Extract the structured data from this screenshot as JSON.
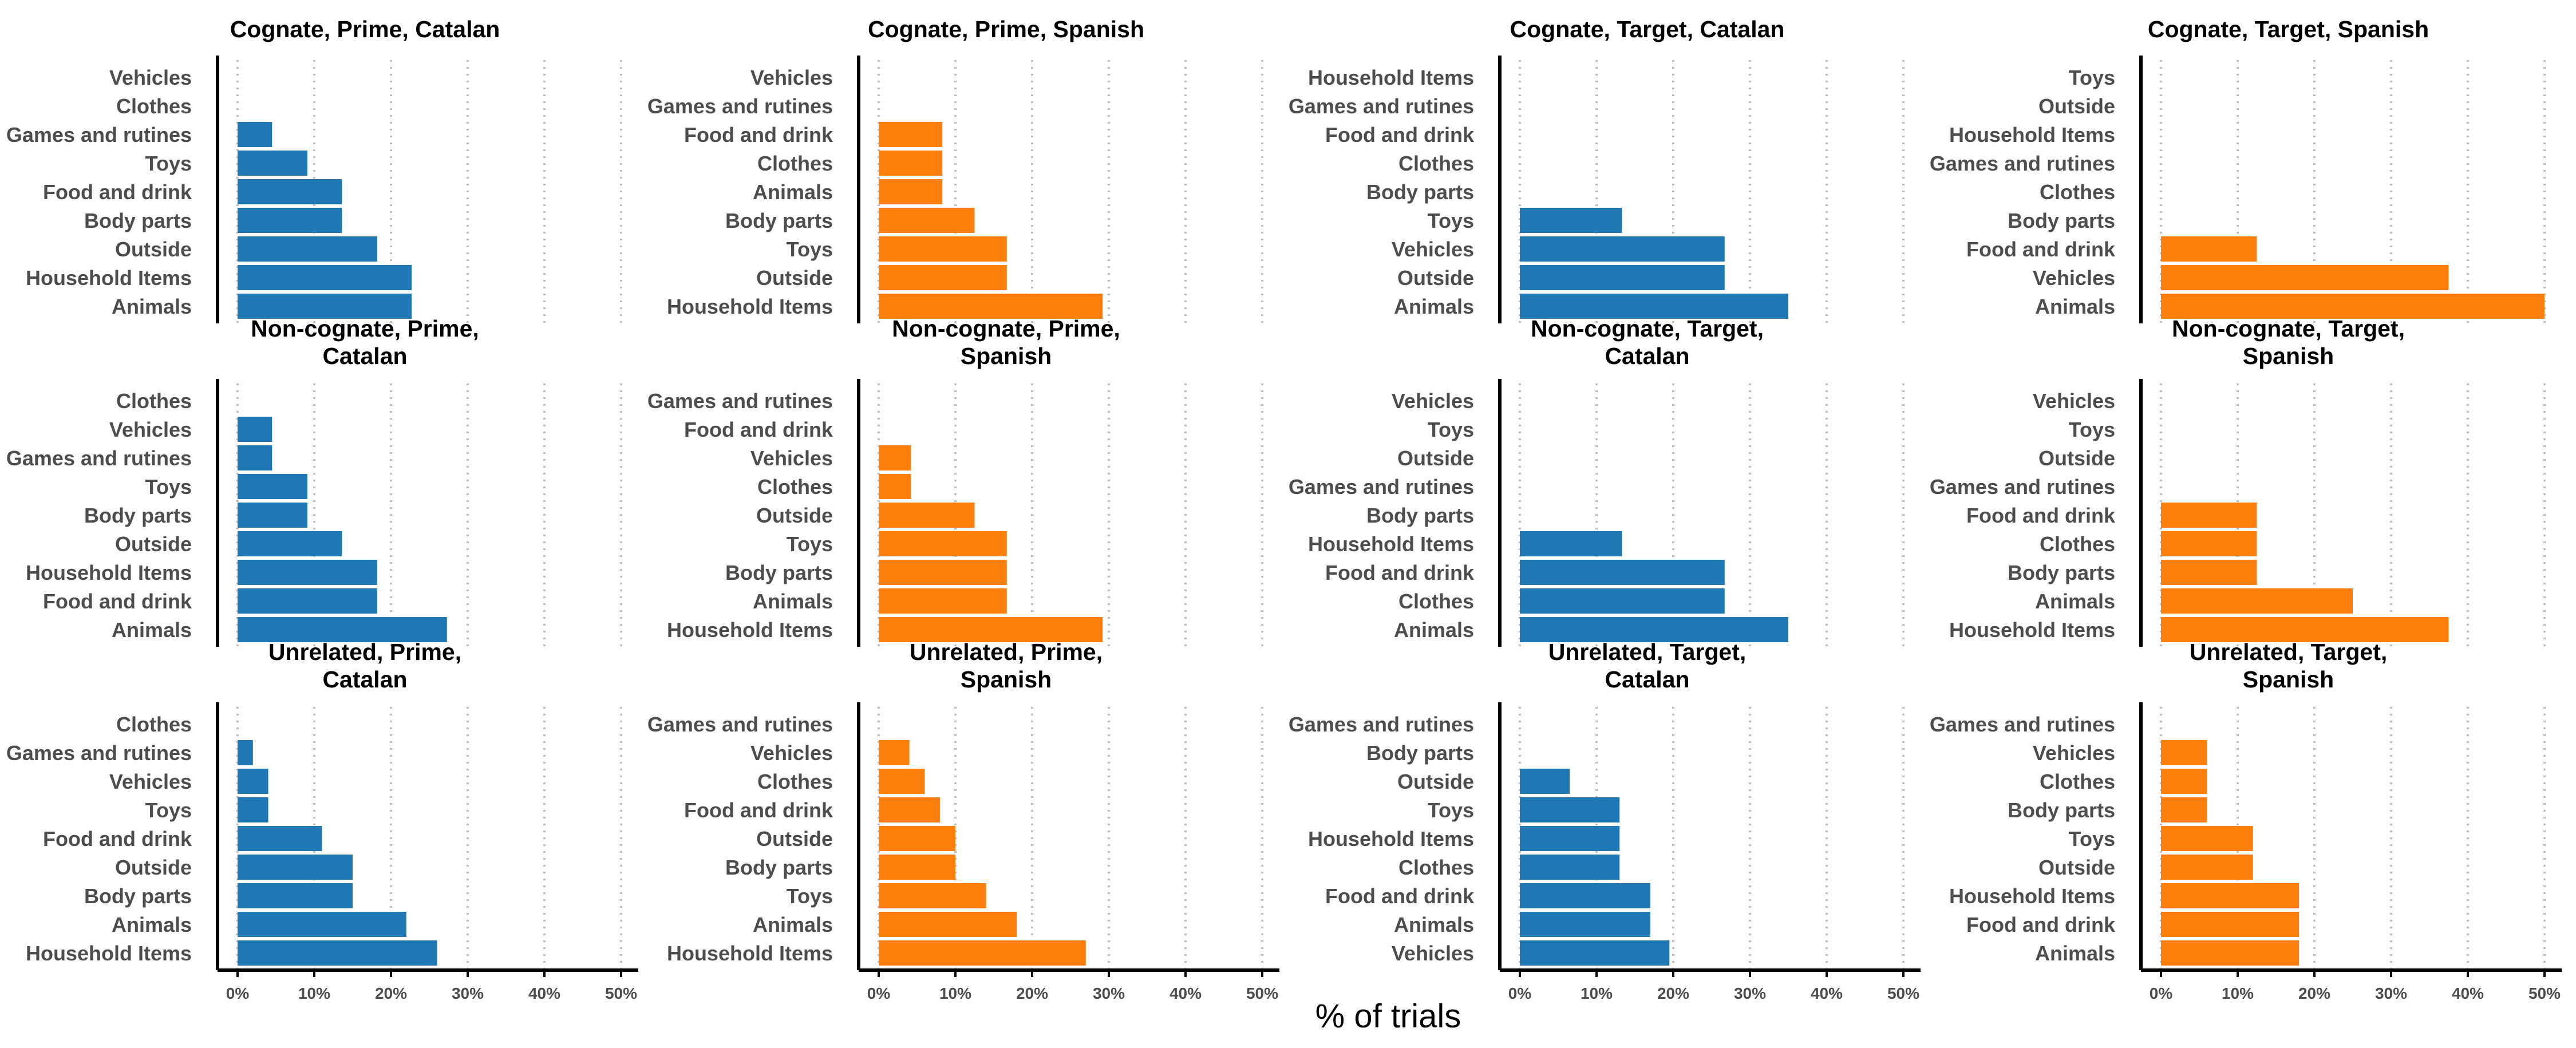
{
  "xlabel": "% of trials",
  "colors": {
    "Catalan": "#1f77b4",
    "Spanish": "#ff7f0e"
  },
  "chart_data": [
    {
      "type": "bar",
      "orientation": "horizontal",
      "title": "Cognate, Prime, Catalan",
      "language": "Catalan",
      "xlim": [
        0,
        0.5
      ],
      "grid": "vertical dotted",
      "categories": [
        "Vehicles",
        "Clothes",
        "Games and rutines",
        "Toys",
        "Food and drink",
        "Body parts",
        "Outside",
        "Household Items",
        "Animals"
      ],
      "values": [
        0,
        0,
        0.045,
        0.091,
        0.136,
        0.136,
        0.182,
        0.227,
        0.227
      ],
      "xticks": [
        "0%",
        "10%",
        "20%",
        "30%",
        "40%",
        "50%"
      ]
    },
    {
      "type": "bar",
      "orientation": "horizontal",
      "title": "Cognate, Prime, Spanish",
      "language": "Spanish",
      "xlim": [
        0,
        0.5
      ],
      "grid": "vertical dotted",
      "categories": [
        "Vehicles",
        "Games and rutines",
        "Food and drink",
        "Clothes",
        "Animals",
        "Body parts",
        "Toys",
        "Outside",
        "Household Items"
      ],
      "values": [
        0,
        0,
        0.083,
        0.083,
        0.083,
        0.125,
        0.167,
        0.167,
        0.292
      ],
      "xticks": [
        "0%",
        "10%",
        "20%",
        "30%",
        "40%",
        "50%"
      ]
    },
    {
      "type": "bar",
      "orientation": "horizontal",
      "title": "Cognate, Target, Catalan",
      "language": "Catalan",
      "xlim": [
        0,
        0.5
      ],
      "grid": "vertical dotted",
      "categories": [
        "Household Items",
        "Games and rutines",
        "Food and drink",
        "Clothes",
        "Body parts",
        "Toys",
        "Vehicles",
        "Outside",
        "Animals"
      ],
      "values": [
        0,
        0,
        0,
        0,
        0,
        0.133,
        0.267,
        0.267,
        0.35
      ],
      "xticks": [
        "0%",
        "10%",
        "20%",
        "30%",
        "40%",
        "50%"
      ]
    },
    {
      "type": "bar",
      "orientation": "horizontal",
      "title": "Cognate, Target, Spanish",
      "language": "Spanish",
      "xlim": [
        0,
        0.5
      ],
      "grid": "vertical dotted",
      "categories": [
        "Toys",
        "Outside",
        "Household Items",
        "Games and rutines",
        "Clothes",
        "Body parts",
        "Food and drink",
        "Vehicles",
        "Animals"
      ],
      "values": [
        0,
        0,
        0,
        0,
        0,
        0,
        0.125,
        0.375,
        0.5
      ],
      "xticks": [
        "0%",
        "10%",
        "20%",
        "30%",
        "40%",
        "50%"
      ]
    },
    {
      "type": "bar",
      "orientation": "horizontal",
      "title": "Non-cognate, Prime, Catalan",
      "title_lines": [
        "Non-cognate, Prime,",
        "Catalan"
      ],
      "language": "Catalan",
      "xlim": [
        0,
        0.5
      ],
      "grid": "vertical dotted",
      "categories": [
        "Clothes",
        "Vehicles",
        "Games and rutines",
        "Toys",
        "Body parts",
        "Outside",
        "Household Items",
        "Food and drink",
        "Animals"
      ],
      "values": [
        0,
        0.045,
        0.045,
        0.091,
        0.091,
        0.136,
        0.182,
        0.182,
        0.273
      ],
      "xticks": [
        "0%",
        "10%",
        "20%",
        "30%",
        "40%",
        "50%"
      ]
    },
    {
      "type": "bar",
      "orientation": "horizontal",
      "title": "Non-cognate, Prime, Spanish",
      "title_lines": [
        "Non-cognate, Prime,",
        "Spanish"
      ],
      "language": "Spanish",
      "xlim": [
        0,
        0.5
      ],
      "grid": "vertical dotted",
      "categories": [
        "Games and rutines",
        "Food and drink",
        "Vehicles",
        "Clothes",
        "Outside",
        "Toys",
        "Body parts",
        "Animals",
        "Household Items"
      ],
      "values": [
        0,
        0,
        0.042,
        0.042,
        0.125,
        0.167,
        0.167,
        0.167,
        0.292
      ],
      "xticks": [
        "0%",
        "10%",
        "20%",
        "30%",
        "40%",
        "50%"
      ]
    },
    {
      "type": "bar",
      "orientation": "horizontal",
      "title": "Non-cognate, Target, Catalan",
      "title_lines": [
        "Non-cognate, Target,",
        "Catalan"
      ],
      "language": "Catalan",
      "xlim": [
        0,
        0.5
      ],
      "grid": "vertical dotted",
      "categories": [
        "Vehicles",
        "Toys",
        "Outside",
        "Games and rutines",
        "Body parts",
        "Household Items",
        "Food and drink",
        "Clothes",
        "Animals"
      ],
      "values": [
        0,
        0,
        0,
        0,
        0,
        0.133,
        0.267,
        0.267,
        0.35
      ],
      "xticks": [
        "0%",
        "10%",
        "20%",
        "30%",
        "40%",
        "50%"
      ]
    },
    {
      "type": "bar",
      "orientation": "horizontal",
      "title": "Non-cognate, Target, Spanish",
      "title_lines": [
        "Non-cognate, Target,",
        "Spanish"
      ],
      "language": "Spanish",
      "xlim": [
        0,
        0.5
      ],
      "grid": "vertical dotted",
      "categories": [
        "Vehicles",
        "Toys",
        "Outside",
        "Games and rutines",
        "Food and drink",
        "Clothes",
        "Body parts",
        "Animals",
        "Household Items"
      ],
      "values": [
        0,
        0,
        0,
        0,
        0.125,
        0.125,
        0.125,
        0.25,
        0.375
      ],
      "xticks": [
        "0%",
        "10%",
        "20%",
        "30%",
        "40%",
        "50%"
      ]
    },
    {
      "type": "bar",
      "orientation": "horizontal",
      "title": "Unrelated, Prime, Catalan",
      "title_lines": [
        "Unrelated, Prime,",
        "Catalan"
      ],
      "language": "Catalan",
      "xlim": [
        0,
        0.5
      ],
      "grid": "vertical dotted",
      "categories": [
        "Clothes",
        "Games and rutines",
        "Vehicles",
        "Toys",
        "Food and drink",
        "Outside",
        "Body parts",
        "Animals",
        "Household Items"
      ],
      "values": [
        0,
        0.02,
        0.04,
        0.04,
        0.11,
        0.15,
        0.15,
        0.22,
        0.26
      ],
      "xticks": [
        "0%",
        "10%",
        "20%",
        "30%",
        "40%",
        "50%"
      ]
    },
    {
      "type": "bar",
      "orientation": "horizontal",
      "title": "Unrelated, Prime, Spanish",
      "title_lines": [
        "Unrelated, Prime,",
        "Spanish"
      ],
      "language": "Spanish",
      "xlim": [
        0,
        0.5
      ],
      "grid": "vertical dotted",
      "categories": [
        "Games and rutines",
        "Vehicles",
        "Clothes",
        "Food and drink",
        "Outside",
        "Body parts",
        "Toys",
        "Animals",
        "Household Items"
      ],
      "values": [
        0,
        0.04,
        0.06,
        0.08,
        0.1,
        0.1,
        0.14,
        0.18,
        0.27
      ],
      "xticks": [
        "0%",
        "10%",
        "20%",
        "30%",
        "40%",
        "50%"
      ]
    },
    {
      "type": "bar",
      "orientation": "horizontal",
      "title": "Unrelated, Target, Catalan",
      "title_lines": [
        "Unrelated, Target,",
        "Catalan"
      ],
      "language": "Catalan",
      "xlim": [
        0,
        0.5
      ],
      "grid": "vertical dotted",
      "categories": [
        "Games and rutines",
        "Body parts",
        "Outside",
        "Toys",
        "Household Items",
        "Clothes",
        "Food and drink",
        "Animals",
        "Vehicles"
      ],
      "values": [
        0,
        0,
        0.065,
        0.13,
        0.13,
        0.13,
        0.17,
        0.17,
        0.195
      ],
      "xticks": [
        "0%",
        "10%",
        "20%",
        "30%",
        "40%",
        "50%"
      ]
    },
    {
      "type": "bar",
      "orientation": "horizontal",
      "title": "Unrelated, Target, Spanish",
      "title_lines": [
        "Unrelated, Target,",
        "Spanish"
      ],
      "language": "Spanish",
      "xlim": [
        0,
        0.5
      ],
      "grid": "vertical dotted",
      "categories": [
        "Games and rutines",
        "Vehicles",
        "Clothes",
        "Body parts",
        "Toys",
        "Outside",
        "Household Items",
        "Food and drink",
        "Animals"
      ],
      "values": [
        0,
        0.06,
        0.06,
        0.06,
        0.12,
        0.12,
        0.18,
        0.18,
        0.18
      ],
      "xticks": [
        "0%",
        "10%",
        "20%",
        "30%",
        "40%",
        "50%"
      ]
    }
  ]
}
